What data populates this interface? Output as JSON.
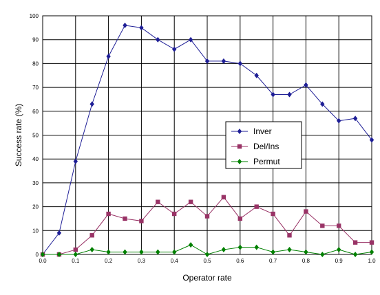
{
  "chart_data": {
    "type": "line",
    "xlabel": "Operator rate",
    "ylabel": "Success rate (%)",
    "xlim": [
      0.0,
      1.0
    ],
    "ylim": [
      0,
      100
    ],
    "x_ticks": [
      "0.0",
      "0.1",
      "0.2",
      "0.3",
      "0.4",
      "0.5",
      "0.6",
      "0.7",
      "0.8",
      "0.9",
      "1.0"
    ],
    "y_ticks": [
      "0",
      "10",
      "20",
      "30",
      "40",
      "50",
      "60",
      "70",
      "80",
      "90",
      "100"
    ],
    "grid": true,
    "legend_position": "right-middle",
    "x": [
      0.0,
      0.05,
      0.1,
      0.15,
      0.2,
      0.25,
      0.3,
      0.35,
      0.4,
      0.45,
      0.5,
      0.55,
      0.6,
      0.65,
      0.7,
      0.75,
      0.8,
      0.85,
      0.9,
      0.95,
      1.0
    ],
    "series": [
      {
        "name": "Inver",
        "color": "#1e1e96",
        "marker": "diamond",
        "values": [
          0,
          9,
          39,
          63,
          83,
          96,
          95,
          90,
          86,
          90,
          81,
          81,
          80,
          75,
          67,
          67,
          71,
          63,
          56,
          57,
          48
        ]
      },
      {
        "name": "Del/Ins",
        "color": "#993366",
        "marker": "square",
        "values": [
          0,
          0,
          2,
          8,
          17,
          15,
          14,
          22,
          17,
          22,
          16,
          24,
          15,
          20,
          17,
          8,
          18,
          12,
          12,
          5,
          5
        ]
      },
      {
        "name": "Permut",
        "color": "#008000",
        "marker": "diamond",
        "values": [
          0,
          0,
          0,
          2,
          1,
          1,
          1,
          1,
          1,
          4,
          0,
          2,
          3,
          3,
          1,
          2,
          1,
          0,
          2,
          0,
          1
        ]
      }
    ]
  }
}
